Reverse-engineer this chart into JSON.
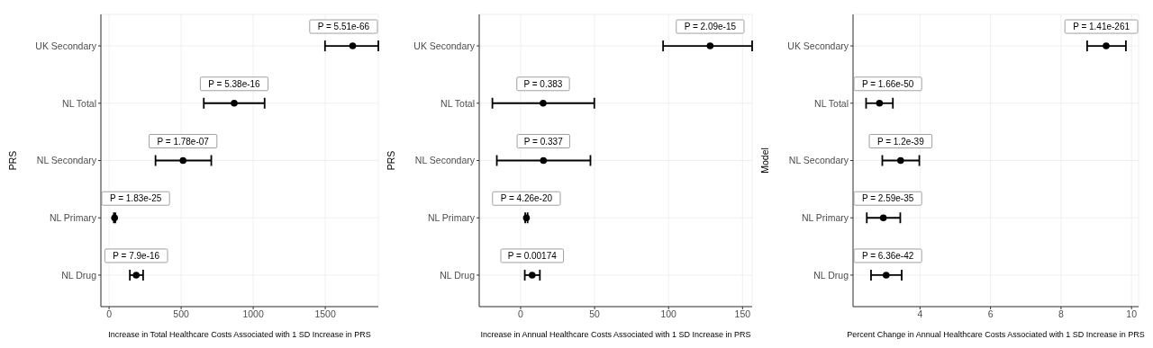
{
  "chart_data": [
    {
      "type": "scatter",
      "orientation": "horizontal",
      "categories": [
        "UK Secondary",
        "NL Total",
        "NL Secondary",
        "NL Primary",
        "NL Drug"
      ],
      "xlabel": "Increase in Total Healthcare Costs Associated with 1 SD Increase in PRS",
      "ylabel": "PRS",
      "xlim": [
        -57,
        1868
      ],
      "xticks": [
        0,
        500,
        1000,
        1500
      ],
      "grid": true,
      "marker": "circle",
      "color": "#000000",
      "values": [
        1690,
        868,
        513,
        38,
        188
      ],
      "errors": [
        [
          1498,
          1868
        ],
        [
          657,
          1079
        ],
        [
          322,
          709
        ],
        [
          33,
          43
        ],
        [
          144,
          236
        ]
      ],
      "annotations": [
        {
          "text": "P = 5.51e-66",
          "x": 1690,
          "y": "UK Secondary"
        },
        {
          "text": "P = 5.38e-16",
          "x": 868,
          "y": "NL Total"
        },
        {
          "text": "P = 1.78e-07",
          "x": 513,
          "y": "NL Secondary"
        },
        {
          "text": "P = 1.83e-25",
          "x": 38,
          "y": "NL Primary"
        },
        {
          "text": "P = 7.9e-16",
          "x": 188,
          "y": "NL Drug"
        }
      ]
    },
    {
      "type": "scatter",
      "orientation": "horizontal",
      "categories": [
        "UK Secondary",
        "NL Total",
        "NL Secondary",
        "NL Primary",
        "NL Drug"
      ],
      "xlabel": "Increase in Annual Healthcare Costs Associated with 1 SD Increase in PRS",
      "ylabel": "PRS",
      "xlim": [
        -28,
        156.5
      ],
      "xticks": [
        0,
        50,
        100,
        150
      ],
      "grid": true,
      "marker": "circle",
      "color": "#000000",
      "values": [
        128.1,
        15.2,
        15.4,
        3.9,
        7.8
      ],
      "errors": [
        [
          96.3,
          156.5
        ],
        [
          -19.1,
          49.8
        ],
        [
          -16.1,
          47.2
        ],
        [
          3.1,
          4.7
        ],
        [
          2.8,
          13
        ]
      ],
      "annotations": [
        {
          "text": "P = 2.09e-15",
          "x": 128.1,
          "y": "UK Secondary"
        },
        {
          "text": "P = 0.383",
          "x": 15.2,
          "y": "NL Total"
        },
        {
          "text": "P = 0.337",
          "x": 15.4,
          "y": "NL Secondary"
        },
        {
          "text": "P = 4.26e-20",
          "x": 3.9,
          "y": "NL Primary"
        },
        {
          "text": "P = 0.00174",
          "x": 7.8,
          "y": "NL Drug"
        }
      ]
    },
    {
      "type": "scatter",
      "orientation": "horizontal",
      "categories": [
        "UK Secondary",
        "NL Total",
        "NL Secondary",
        "NL Primary",
        "NL Drug"
      ],
      "xlabel": "Percent Change in Annual Healthcare Costs Associated with 1 SD Increase in PRS",
      "ylabel": "Model",
      "xlim": [
        2.1,
        10.2
      ],
      "xticks": [
        4,
        6,
        8,
        10
      ],
      "grid": true,
      "marker": "circle",
      "color": "#000000",
      "values": [
        9.28,
        2.85,
        3.45,
        2.96,
        3.04
      ],
      "errors": [
        [
          8.74,
          9.84
        ],
        [
          2.47,
          3.23
        ],
        [
          2.93,
          3.98
        ],
        [
          2.49,
          3.44
        ],
        [
          2.61,
          3.48
        ]
      ],
      "annotations": [
        {
          "text": "P = 1.41e-261",
          "x": 9.28,
          "y": "UK Secondary"
        },
        {
          "text": "P = 1.66e-50",
          "x": 2.85,
          "y": "NL Total"
        },
        {
          "text": "P = 1.2e-39",
          "x": 3.45,
          "y": "NL Secondary"
        },
        {
          "text": "P = 2.59e-35",
          "x": 2.96,
          "y": "NL Primary"
        },
        {
          "text": "P = 6.36e-42",
          "x": 3.04,
          "y": "NL Drug"
        }
      ]
    }
  ]
}
